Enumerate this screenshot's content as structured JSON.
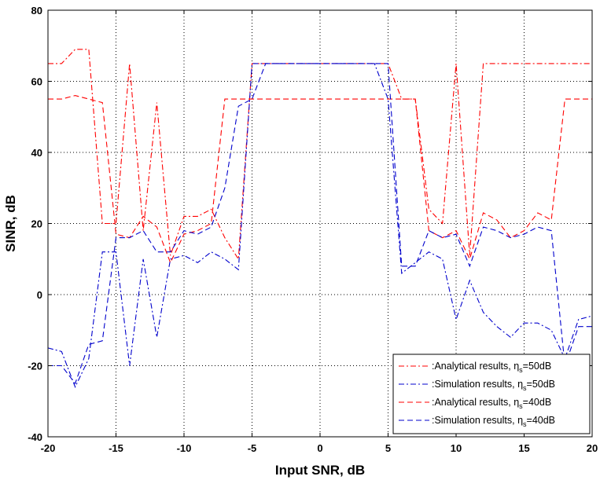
{
  "chart_data": {
    "type": "line",
    "xlabel": "Input SNR,  dB",
    "ylabel": "SINR,  dB",
    "xlim": [
      -20,
      20
    ],
    "ylim": [
      -40,
      80
    ],
    "xticks": [
      -20,
      -15,
      -10,
      -5,
      0,
      5,
      10,
      15,
      20
    ],
    "yticks": [
      -40,
      -20,
      0,
      20,
      40,
      60,
      80
    ],
    "xtick_labels": [
      "-20",
      "-15",
      "-10",
      "-5",
      "0",
      "5",
      "10",
      "15",
      "20"
    ],
    "ytick_labels": [
      "-40",
      "-20",
      "0",
      "20",
      "40",
      "60",
      "80"
    ],
    "grid": true,
    "legend_position": "bottom-right",
    "series": [
      {
        "name": ":Analytical results, η",
        "name_sub": "s",
        "name_suffix": "=50dB",
        "color": "#ff0000",
        "style": "dashdot",
        "x": [
          -20,
          -19,
          -18,
          -17,
          -16,
          -15,
          -14,
          -13,
          -12,
          -11,
          -10,
          -9,
          -8,
          -7,
          -6,
          -5,
          -4,
          -3,
          -2,
          -1,
          0,
          1,
          2,
          3,
          4,
          5,
          6,
          7,
          8,
          9,
          10,
          11,
          12,
          13,
          14,
          15,
          16,
          17,
          18,
          19,
          20
        ],
        "y": [
          65,
          65,
          69,
          69,
          20,
          20,
          65,
          18,
          54,
          11,
          22,
          22,
          24,
          16,
          10,
          65,
          65,
          65,
          65,
          65,
          65,
          65,
          65,
          65,
          65,
          65,
          55,
          55,
          24,
          20,
          65,
          11,
          65,
          65,
          65,
          65,
          65,
          65,
          65,
          65,
          65
        ]
      },
      {
        "name": ":Simulation results, η",
        "name_sub": "s",
        "name_suffix": "=50dB",
        "color": "#0000cc",
        "style": "dashdot",
        "x": [
          -20,
          -19,
          -18,
          -17,
          -16,
          -15,
          -14,
          -13,
          -12,
          -11,
          -10,
          -9,
          -8,
          -7,
          -6,
          -5,
          -4,
          -3,
          -2,
          -1,
          0,
          1,
          2,
          3,
          4,
          5,
          6,
          7,
          8,
          9,
          10,
          11,
          12,
          13,
          14,
          15,
          16,
          17,
          18,
          19,
          20
        ],
        "y": [
          -15,
          -16,
          -26,
          -18,
          12,
          12,
          -20,
          10,
          -12,
          10,
          11,
          9,
          12,
          10,
          7,
          65,
          65,
          65,
          65,
          65,
          65,
          65,
          65,
          65,
          65,
          55,
          6,
          9,
          12,
          10,
          -7,
          4,
          -5,
          -9,
          -12,
          -8,
          -8,
          -10,
          -18,
          -7,
          -6
        ]
      },
      {
        "name": ":Analytical results, η",
        "name_sub": "s",
        "name_suffix": "=40dB",
        "color": "#ff0000",
        "style": "dashed",
        "x": [
          -20,
          -19,
          -18,
          -17,
          -16,
          -15,
          -14,
          -13,
          -12,
          -11,
          -10,
          -9,
          -8,
          -7,
          -6,
          -5,
          -4,
          -3,
          -2,
          -1,
          0,
          1,
          2,
          3,
          4,
          5,
          6,
          7,
          8,
          9,
          10,
          11,
          12,
          13,
          14,
          15,
          16,
          17,
          18,
          19,
          20
        ],
        "y": [
          55,
          55,
          56,
          55,
          54,
          17,
          16,
          22,
          19,
          9,
          17,
          18,
          20,
          55,
          55,
          55,
          55,
          55,
          55,
          55,
          55,
          55,
          55,
          55,
          55,
          55,
          55,
          55,
          18,
          16,
          18,
          10,
          23,
          21,
          16,
          18,
          23,
          21,
          55,
          55,
          55
        ]
      },
      {
        "name": ":Simulation results, η",
        "name_sub": "s",
        "name_suffix": "=40dB",
        "color": "#0000cc",
        "style": "dashed",
        "x": [
          -20,
          -19,
          -18,
          -17,
          -16,
          -15,
          -14,
          -13,
          -12,
          -11,
          -10,
          -9,
          -8,
          -7,
          -6,
          -5,
          -4,
          -3,
          -2,
          -1,
          0,
          1,
          2,
          3,
          4,
          5,
          6,
          7,
          8,
          9,
          10,
          11,
          12,
          13,
          14,
          15,
          16,
          17,
          18,
          19,
          20
        ],
        "y": [
          -20,
          -20,
          -25,
          -14,
          -13,
          16,
          16,
          18,
          12,
          12,
          18,
          17,
          19,
          30,
          53,
          55,
          65,
          65,
          65,
          65,
          65,
          65,
          65,
          65,
          65,
          65,
          8,
          8,
          18,
          16,
          17,
          8,
          19,
          18,
          16,
          17,
          19,
          18,
          -20,
          -9,
          -9
        ]
      }
    ]
  }
}
